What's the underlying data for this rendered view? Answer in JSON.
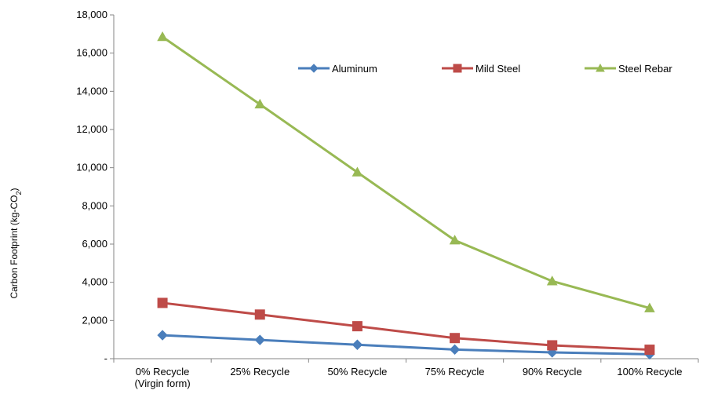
{
  "chart_data": {
    "type": "line",
    "categories": [
      "0% Recycle\n(Virgin form)",
      "25% Recycle",
      "50% Recycle",
      "75% Recycle",
      "90% Recycle",
      "100% Recycle"
    ],
    "series": [
      {
        "name": "Aluminum",
        "values": [
          1230,
          980,
          730,
          480,
          330,
          230
        ],
        "color": "#4a7ebb",
        "marker": "diamond"
      },
      {
        "name": "Mild Steel",
        "values": [
          2920,
          2310,
          1700,
          1080,
          700,
          470
        ],
        "color": "#be4b48",
        "marker": "square"
      },
      {
        "name": "Steel Rebar",
        "values": [
          16850,
          13320,
          9760,
          6200,
          4060,
          2650
        ],
        "color": "#98b954",
        "marker": "triangle"
      }
    ],
    "ylabel": "Carbon Footprint (kg-CO",
    "ylabel_sub": "2",
    "ylabel_close": ")",
    "ylim": [
      0,
      18000
    ],
    "yticks": [
      0,
      2000,
      4000,
      6000,
      8000,
      10000,
      12000,
      14000,
      16000,
      18000
    ],
    "ytick_labels": [
      "-",
      "2,000",
      "4,000",
      "6,000",
      "8,000",
      "10,000",
      "12,000",
      "14,000",
      "16,000",
      "18,000"
    ],
    "grid": false,
    "legend_position": "top-right"
  }
}
